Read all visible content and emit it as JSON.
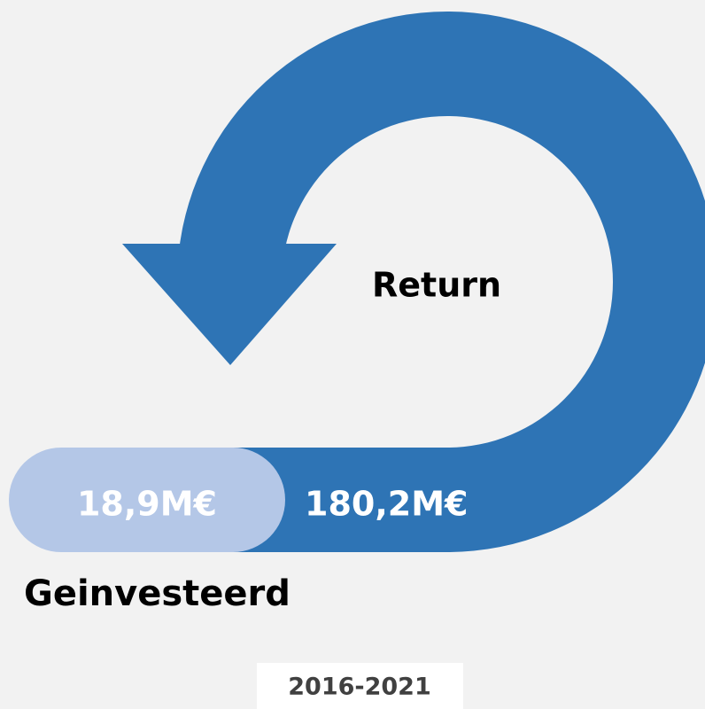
{
  "return": {
    "label": "Return"
  },
  "invested": {
    "label": "Geinvesteerd",
    "amount": "18,9M€"
  },
  "return_amount": "180,2M€",
  "period": "2016-2021"
}
